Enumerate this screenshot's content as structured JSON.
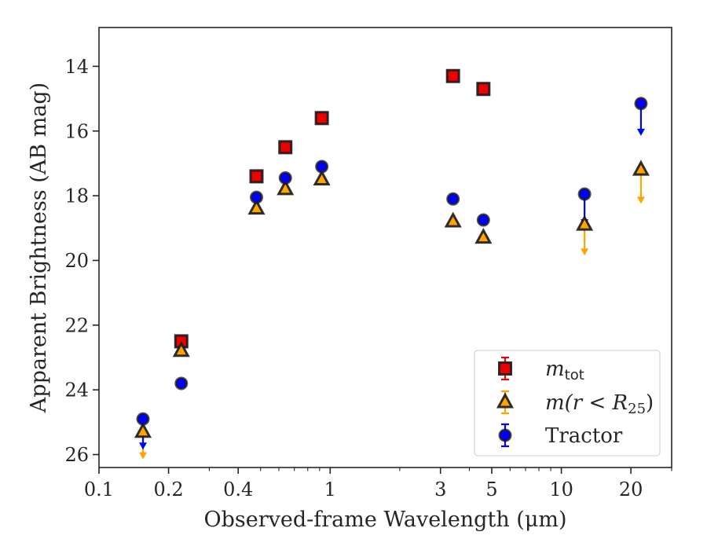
{
  "chart_data": {
    "type": "scatter",
    "xlabel": "Observed-frame Wavelength (μm)",
    "ylabel": "Apparent Brightness (AB mag)",
    "xscale": "log",
    "xlim": [
      0.1,
      30
    ],
    "ylim": [
      26.4,
      12.8
    ],
    "y_inverted": true,
    "xticks": [
      {
        "value": 0.1,
        "label": "0.1"
      },
      {
        "value": 0.2,
        "label": "0.2"
      },
      {
        "value": 0.4,
        "label": "0.4"
      },
      {
        "value": 1,
        "label": "1"
      },
      {
        "value": 3,
        "label": "3"
      },
      {
        "value": 5,
        "label": "5"
      },
      {
        "value": 10,
        "label": "10"
      },
      {
        "value": 20,
        "label": "20"
      }
    ],
    "yticks": [
      {
        "value": 14,
        "label": "14"
      },
      {
        "value": 16,
        "label": "16"
      },
      {
        "value": 18,
        "label": "18"
      },
      {
        "value": 20,
        "label": "20"
      },
      {
        "value": 22,
        "label": "22"
      },
      {
        "value": 24,
        "label": "24"
      },
      {
        "value": 26,
        "label": "26"
      }
    ],
    "grid": false,
    "legend_position": "bottom-right",
    "series": [
      {
        "name": "m_tot",
        "legend": {
          "base": "m",
          "sub": "tot"
        },
        "marker": "square",
        "color": "#ee0000",
        "points": [
          {
            "x": 0.227,
            "y": 22.5
          },
          {
            "x": 0.48,
            "y": 17.4
          },
          {
            "x": 0.64,
            "y": 16.5
          },
          {
            "x": 0.92,
            "y": 15.6
          },
          {
            "x": 3.4,
            "y": 14.3
          },
          {
            "x": 4.6,
            "y": 14.7
          }
        ]
      },
      {
        "name": "m(r < R25)",
        "legend": {
          "text": "m(r < R",
          "sub": "25",
          "close": ")"
        },
        "marker": "triangle",
        "color": "#ffa500",
        "points": [
          {
            "x": 0.155,
            "y": 25.3,
            "upper_limit": true,
            "limit_to": 26.1
          },
          {
            "x": 0.227,
            "y": 22.8
          },
          {
            "x": 0.48,
            "y": 18.4
          },
          {
            "x": 0.64,
            "y": 17.8
          },
          {
            "x": 0.92,
            "y": 17.5
          },
          {
            "x": 3.4,
            "y": 18.8
          },
          {
            "x": 4.6,
            "y": 19.3
          },
          {
            "x": 12.6,
            "y": 18.9,
            "upper_limit": true,
            "limit_to": 19.8
          },
          {
            "x": 22.1,
            "y": 17.2,
            "upper_limit": true,
            "limit_to": 18.2
          }
        ]
      },
      {
        "name": "Tractor",
        "legend": {
          "text": "Tractor"
        },
        "marker": "circle",
        "color": "#0000ff",
        "points": [
          {
            "x": 0.155,
            "y": 24.9,
            "upper_limit": true,
            "limit_to": 25.8
          },
          {
            "x": 0.227,
            "y": 23.8
          },
          {
            "x": 0.48,
            "y": 18.05
          },
          {
            "x": 0.64,
            "y": 17.45
          },
          {
            "x": 0.92,
            "y": 17.1
          },
          {
            "x": 3.4,
            "y": 18.1
          },
          {
            "x": 4.6,
            "y": 18.75
          },
          {
            "x": 12.6,
            "y": 17.95,
            "upper_limit": true,
            "limit_to": 18.9
          },
          {
            "x": 22.1,
            "y": 15.15,
            "upper_limit": true,
            "limit_to": 16.1
          }
        ]
      }
    ]
  }
}
